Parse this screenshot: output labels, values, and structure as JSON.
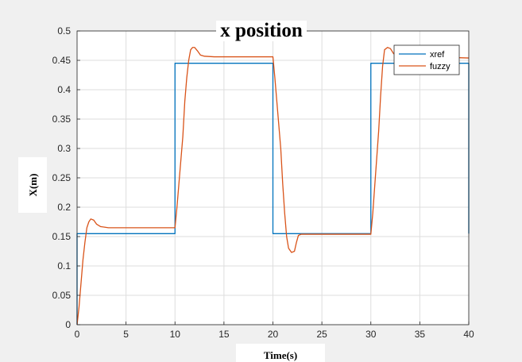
{
  "chart_data": {
    "type": "line",
    "title": "x position",
    "xlabel": "Time(s)",
    "ylabel": "X(m)",
    "xlim": [
      0,
      40
    ],
    "ylim": [
      0,
      0.5
    ],
    "xticks": [
      0,
      5,
      10,
      15,
      20,
      25,
      30,
      35,
      40
    ],
    "yticks": [
      0,
      0.05,
      0.1,
      0.15,
      0.2,
      0.25,
      0.3,
      0.35,
      0.4,
      0.45,
      0.5
    ],
    "xtick_labels": [
      "0",
      "5",
      "10",
      "15",
      "20",
      "25",
      "30",
      "35",
      "40"
    ],
    "ytick_labels": [
      "0",
      "0.05",
      "0.1",
      "0.15",
      "0.2",
      "0.25",
      "0.3",
      "0.35",
      "0.4",
      "0.45",
      "0.5"
    ],
    "grid": true,
    "legend_position": "top-right",
    "series": [
      {
        "name": "xref",
        "color": "#0072BD",
        "x": [
          0,
          0,
          10,
          10,
          20,
          20,
          30,
          30,
          40,
          40
        ],
        "y": [
          0,
          0.155,
          0.155,
          0.445,
          0.445,
          0.155,
          0.155,
          0.445,
          0.445,
          0.155
        ]
      },
      {
        "name": "fuzzy",
        "color": "#D95319",
        "x": [
          0,
          0.2,
          0.4,
          0.6,
          0.8,
          1.0,
          1.2,
          1.4,
          1.7,
          2.0,
          2.4,
          2.8,
          3.2,
          4,
          6,
          8,
          10,
          10.2,
          10.5,
          10.8,
          11.0,
          11.2,
          11.4,
          11.6,
          11.8,
          12.0,
          12.3,
          12.6,
          13.0,
          14,
          16,
          18,
          20,
          20.2,
          20.5,
          20.8,
          21.0,
          21.2,
          21.4,
          21.6,
          21.9,
          22.2,
          22.4,
          22.6,
          22.9,
          23.5,
          25,
          28,
          30,
          30.2,
          30.5,
          30.8,
          31.0,
          31.2,
          31.4,
          31.7,
          32.0,
          32.3,
          32.6,
          33.0,
          34,
          36,
          38,
          40
        ],
        "y": [
          0,
          0.03,
          0.07,
          0.11,
          0.14,
          0.165,
          0.175,
          0.18,
          0.178,
          0.171,
          0.167,
          0.166,
          0.165,
          0.165,
          0.165,
          0.165,
          0.165,
          0.2,
          0.26,
          0.32,
          0.38,
          0.42,
          0.45,
          0.468,
          0.472,
          0.472,
          0.466,
          0.459,
          0.457,
          0.456,
          0.456,
          0.456,
          0.456,
          0.42,
          0.36,
          0.3,
          0.24,
          0.19,
          0.15,
          0.13,
          0.123,
          0.125,
          0.14,
          0.152,
          0.154,
          0.154,
          0.154,
          0.154,
          0.154,
          0.19,
          0.26,
          0.33,
          0.39,
          0.44,
          0.468,
          0.472,
          0.47,
          0.462,
          0.457,
          0.456,
          0.456,
          0.456,
          0.455,
          0.454
        ]
      }
    ]
  }
}
